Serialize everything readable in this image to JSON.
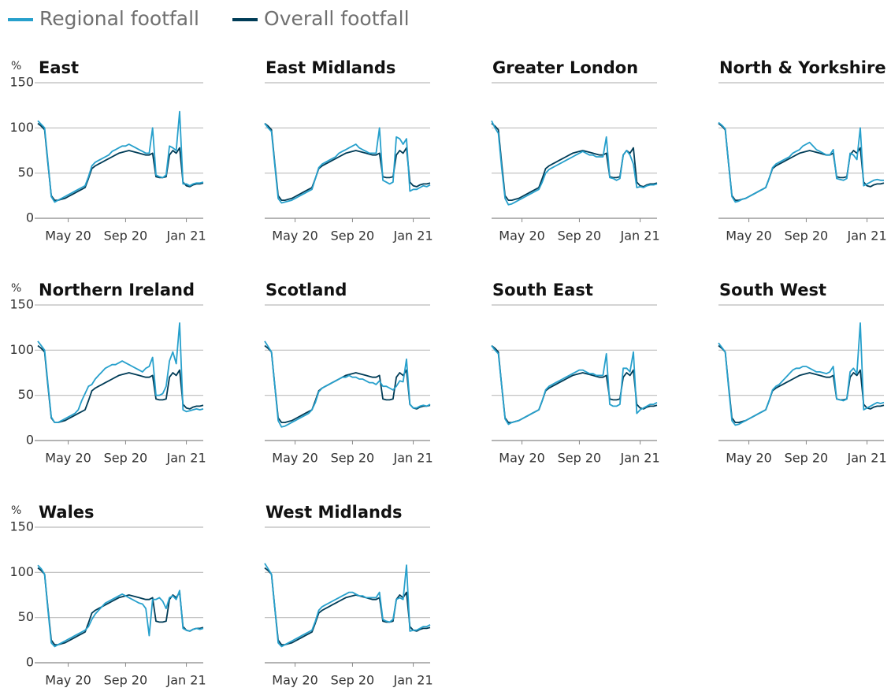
{
  "chart_data": {
    "type": "line",
    "y_label": "%",
    "ylim": [
      0,
      150
    ],
    "yticks": [
      0,
      50,
      100,
      150
    ],
    "grid": true,
    "legend": "top-left",
    "categories": [
      null,
      null,
      null,
      null,
      null,
      null,
      null,
      null,
      null,
      "May 20",
      null,
      null,
      null,
      null,
      null,
      null,
      null,
      null,
      null,
      null,
      null,
      null,
      null,
      null,
      null,
      null,
      "Sep 20",
      null,
      null,
      null,
      null,
      null,
      null,
      null,
      null,
      null,
      null,
      null,
      null,
      null,
      null,
      null,
      null,
      null,
      "Jan 21",
      null,
      null,
      null,
      null,
      null
    ],
    "series": [
      {
        "name": "Regional footfall",
        "color": "#27a0cc"
      },
      {
        "name": "Overall footfall",
        "color": "#003c57",
        "values": [
          105,
          102,
          98,
          60,
          25,
          20,
          20,
          21,
          22,
          24,
          26,
          28,
          30,
          32,
          34,
          44,
          55,
          58,
          60,
          62,
          64,
          66,
          68,
          70,
          72,
          73,
          74,
          75,
          74,
          73,
          72,
          71,
          70,
          70,
          72,
          46,
          45,
          45,
          46,
          70,
          75,
          72,
          78,
          40,
          36,
          35,
          37,
          38,
          38,
          39
        ]
      }
    ],
    "panels": [
      {
        "title": "East",
        "values": [
          108,
          104,
          100,
          62,
          24,
          18,
          20,
          22,
          24,
          26,
          28,
          30,
          32,
          34,
          36,
          46,
          58,
          62,
          64,
          66,
          68,
          70,
          74,
          76,
          78,
          80,
          80,
          82,
          80,
          78,
          76,
          74,
          72,
          72,
          100,
          48,
          46,
          45,
          48,
          80,
          78,
          75,
          118,
          38,
          38,
          36,
          38,
          39,
          39,
          40
        ]
      },
      {
        "title": "East Midlands",
        "values": [
          105,
          100,
          96,
          58,
          22,
          17,
          18,
          19,
          20,
          22,
          24,
          26,
          28,
          30,
          32,
          44,
          56,
          60,
          62,
          64,
          66,
          68,
          72,
          74,
          76,
          78,
          80,
          82,
          78,
          76,
          74,
          72,
          72,
          72,
          100,
          42,
          40,
          38,
          40,
          90,
          88,
          82,
          88,
          30,
          32,
          32,
          34,
          36,
          35,
          37
        ]
      },
      {
        "title": "Greater London",
        "values": [
          108,
          100,
          94,
          55,
          22,
          15,
          16,
          18,
          20,
          22,
          24,
          26,
          28,
          30,
          32,
          40,
          50,
          54,
          56,
          58,
          60,
          62,
          64,
          66,
          68,
          70,
          72,
          74,
          72,
          70,
          70,
          68,
          68,
          68,
          90,
          45,
          44,
          42,
          44,
          70,
          75,
          70,
          60,
          34,
          35,
          34,
          36,
          37,
          37,
          38
        ]
      },
      {
        "title": "North & Yorkshire",
        "values": [
          106,
          103,
          99,
          60,
          24,
          18,
          19,
          21,
          22,
          24,
          26,
          28,
          30,
          32,
          34,
          44,
          56,
          60,
          62,
          64,
          66,
          68,
          72,
          74,
          76,
          80,
          82,
          84,
          80,
          76,
          74,
          72,
          70,
          70,
          76,
          44,
          43,
          42,
          44,
          72,
          70,
          65,
          100,
          36,
          38,
          40,
          42,
          43,
          42,
          42
        ]
      },
      {
        "title": "Northern Ireland",
        "values": [
          110,
          105,
          100,
          62,
          26,
          20,
          20,
          22,
          24,
          26,
          28,
          30,
          34,
          44,
          52,
          60,
          62,
          68,
          72,
          76,
          80,
          82,
          84,
          84,
          86,
          88,
          86,
          84,
          82,
          80,
          78,
          76,
          80,
          82,
          92,
          50,
          50,
          52,
          60,
          88,
          98,
          85,
          130,
          34,
          32,
          33,
          34,
          35,
          34,
          35
        ]
      },
      {
        "title": "Scotland",
        "values": [
          110,
          104,
          98,
          60,
          22,
          15,
          16,
          18,
          20,
          22,
          24,
          26,
          28,
          30,
          34,
          42,
          54,
          58,
          60,
          62,
          64,
          66,
          68,
          70,
          70,
          72,
          70,
          70,
          68,
          68,
          66,
          64,
          64,
          62,
          66,
          60,
          60,
          58,
          56,
          60,
          66,
          65,
          90,
          40,
          36,
          36,
          38,
          39,
          38,
          40
        ]
      },
      {
        "title": "South East",
        "values": [
          105,
          100,
          96,
          60,
          24,
          18,
          20,
          21,
          22,
          24,
          26,
          28,
          30,
          32,
          34,
          44,
          56,
          60,
          62,
          64,
          66,
          68,
          70,
          72,
          74,
          76,
          78,
          78,
          76,
          74,
          74,
          72,
          72,
          72,
          96,
          40,
          38,
          38,
          40,
          80,
          80,
          76,
          98,
          30,
          34,
          36,
          38,
          40,
          40,
          42
        ]
      },
      {
        "title": "South West",
        "values": [
          108,
          103,
          98,
          58,
          22,
          17,
          18,
          20,
          22,
          24,
          26,
          28,
          30,
          32,
          34,
          44,
          56,
          60,
          62,
          66,
          70,
          74,
          78,
          80,
          80,
          82,
          82,
          80,
          78,
          76,
          76,
          75,
          74,
          76,
          82,
          46,
          45,
          44,
          46,
          76,
          80,
          74,
          130,
          34,
          36,
          38,
          40,
          42,
          41,
          42
        ]
      },
      {
        "title": "Wales",
        "values": [
          108,
          104,
          98,
          58,
          22,
          18,
          20,
          22,
          24,
          26,
          28,
          30,
          32,
          34,
          36,
          40,
          48,
          54,
          58,
          62,
          66,
          68,
          70,
          72,
          74,
          76,
          74,
          72,
          70,
          68,
          66,
          65,
          60,
          30,
          70,
          70,
          72,
          68,
          60,
          72,
          74,
          70,
          80,
          38,
          36,
          35,
          37,
          38,
          37,
          38
        ]
      },
      {
        "title": "West Midlands",
        "values": [
          110,
          104,
          98,
          60,
          22,
          18,
          20,
          22,
          24,
          26,
          28,
          30,
          32,
          34,
          36,
          46,
          58,
          62,
          64,
          66,
          68,
          70,
          72,
          74,
          76,
          78,
          78,
          76,
          74,
          74,
          72,
          72,
          72,
          72,
          78,
          48,
          46,
          45,
          48,
          70,
          72,
          70,
          108,
          35,
          36,
          36,
          38,
          40,
          40,
          42
        ]
      }
    ]
  }
}
